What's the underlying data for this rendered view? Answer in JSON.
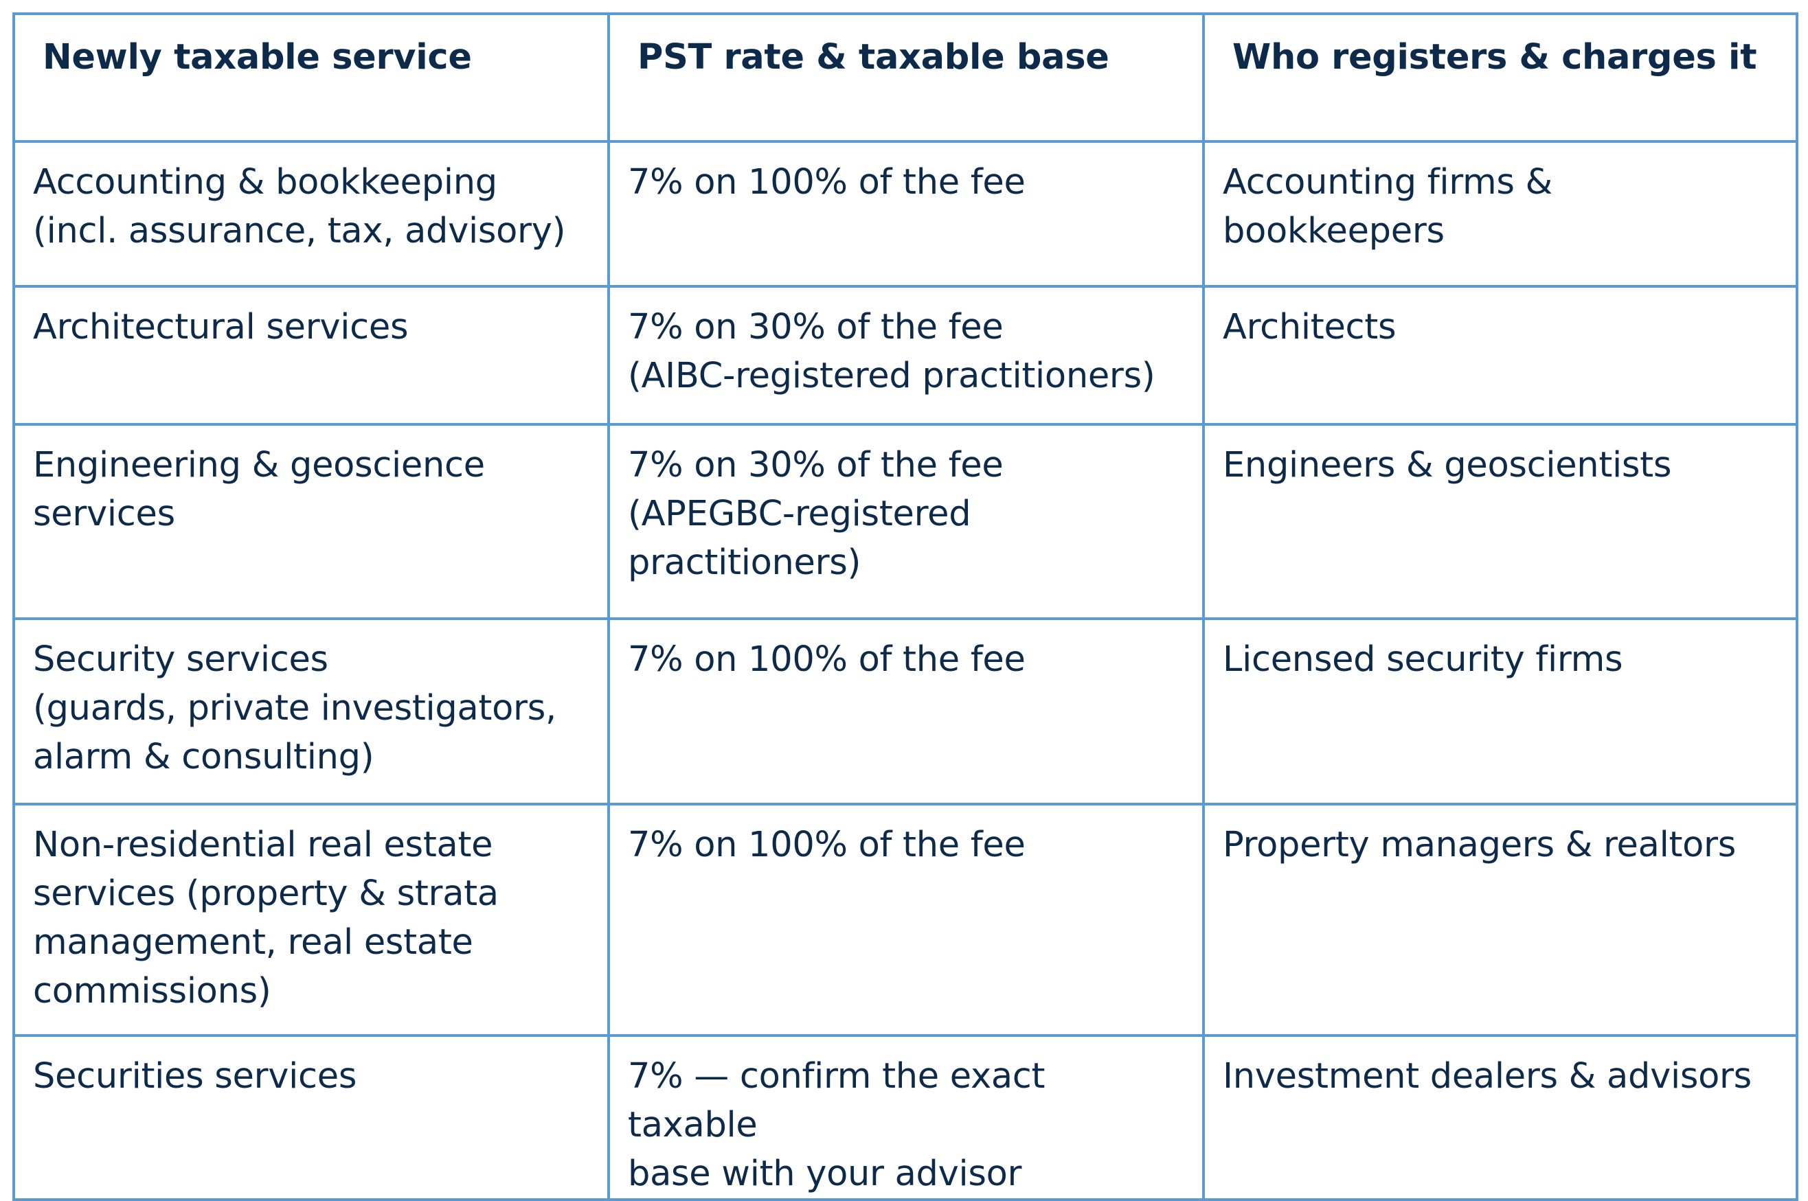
{
  "table": {
    "headers": [
      "Newly taxable service",
      "PST rate & taxable base",
      "Who registers & charges it"
    ],
    "rows": [
      {
        "service_lines": [
          "Accounting & bookkeeping",
          "(incl. assurance, tax, advisory)"
        ],
        "rate_lines": [
          "7% on 100% of the fee"
        ],
        "who_lines": [
          "Accounting firms &",
          "bookkeepers"
        ]
      },
      {
        "service_lines": [
          "Architectural services"
        ],
        "rate_lines": [
          "7% on 30% of the fee",
          "(AIBC-registered practitioners)"
        ],
        "who_lines": [
          "Architects"
        ]
      },
      {
        "service_lines": [
          "Engineering & geoscience",
          "services"
        ],
        "rate_lines": [
          "7% on 30% of the fee",
          "(APEGBC-registered",
          "practitioners)"
        ],
        "who_lines": [
          "Engineers & geoscientists"
        ]
      },
      {
        "service_lines": [
          "Security services",
          "(guards, private investigators,",
          "alarm & consulting)"
        ],
        "rate_lines": [
          "7% on 100% of the fee"
        ],
        "who_lines": [
          "Licensed security firms"
        ]
      },
      {
        "service_lines": [
          "Non-residential real estate",
          "services (property & strata",
          "management, real estate",
          "commissions)"
        ],
        "rate_lines": [
          "7% on 100% of the fee"
        ],
        "who_lines": [
          "Property managers & realtors"
        ]
      },
      {
        "service_lines": [
          "Securities services"
        ],
        "rate_lines": [
          "7% — confirm the exact taxable",
          "base with your advisor"
        ],
        "who_lines": [
          "Investment dealers & advisors"
        ]
      }
    ]
  },
  "colors": {
    "border": "#5b9bd5",
    "text": "#0e2a4b"
  }
}
